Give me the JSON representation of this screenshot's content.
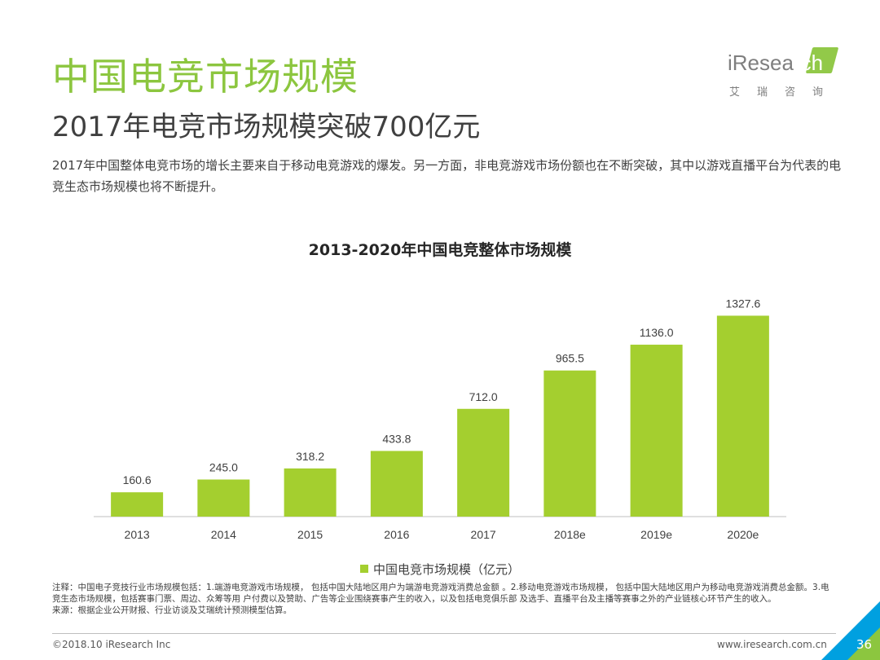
{
  "header": {
    "title": "中国电竞市场规模",
    "subtitle": "2017年电竞市场规模突破700亿元",
    "description": "2017年中国整体电竞市场的增长主要来自于移动电竞游戏的爆发。另一方面，非电竞游戏市场份额也在不断突破，其中以游戏直播平台为代表的电竞生态市场规模也将不断提升。"
  },
  "logo": {
    "text_main": "iResea",
    "text_accent": "rch",
    "subtitle": "艾瑞咨询"
  },
  "chart_data": {
    "type": "bar",
    "title": "2013-2020年中国电竞整体市场规模",
    "categories": [
      "2013",
      "2014",
      "2015",
      "2016",
      "2017",
      "2018e",
      "2019e",
      "2020e"
    ],
    "series": [
      {
        "name": "中国电竞市场规模（亿元）",
        "values": [
          160.6,
          245.0,
          318.2,
          433.8,
          712.0,
          965.5,
          1136.0,
          1327.6
        ],
        "labels": [
          "160.6",
          "245.0",
          "318.2",
          "433.8",
          "712.0",
          "965.5",
          "1136.0",
          "1327.6"
        ]
      }
    ],
    "ylim": [
      0,
      1400
    ],
    "grid": false,
    "legend_position": "bottom",
    "bar_color": "#a4cf2f"
  },
  "notes": {
    "text": "注释：中国电子竞技行业市场规模包括：1.端游电竞游戏市场规模， 包括中国大陆地区用户为端游电竞游戏消费总金额 。2.移动电竞游戏市场规模， 包括中国大陆地区用户为移动电竞游戏消费总金额。3.电竞生态市场规模，包括赛事门票、周边、众筹等用 户付费以及赞助、广告等企业围绕赛事产生的收入，以及包括电竞俱乐部 及选手、直播平台及主播等赛事之外的产业链核心环节产生的收入。",
    "source": "来源：根据企业公开财报、行业访谈及艾瑞统计预测模型估算。"
  },
  "footer": {
    "copyright": "©2018.10 iResearch Inc",
    "website": "www.iresearch.com.cn",
    "page_number": "36"
  },
  "colors": {
    "brand_green": "#8cc63f",
    "bar_green": "#a4cf2f",
    "brand_blue": "#00a0e0"
  }
}
